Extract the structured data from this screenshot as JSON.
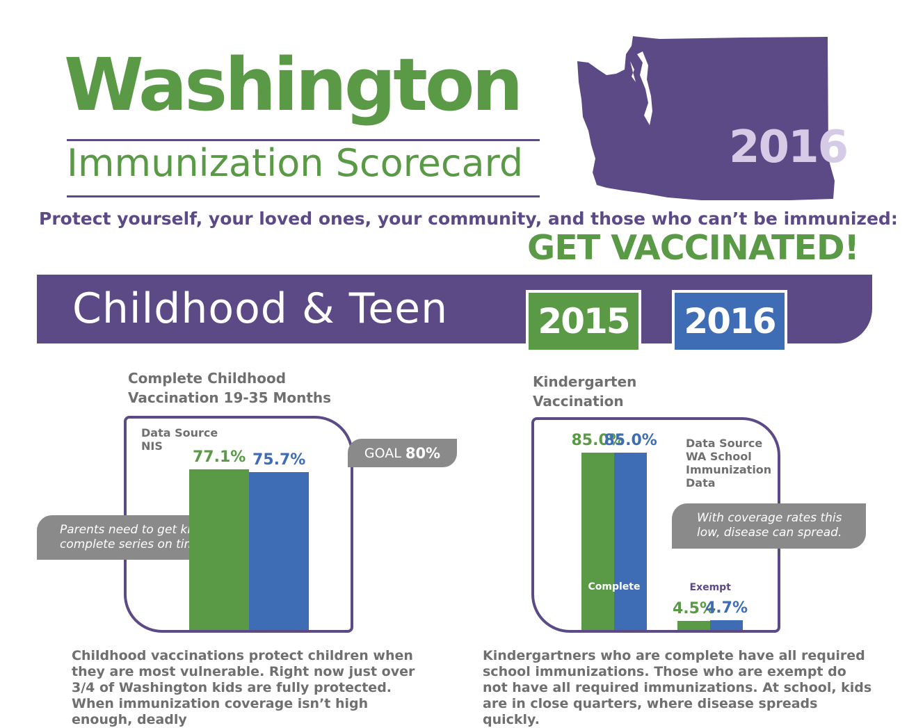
{
  "header": {
    "title": "Washington",
    "subtitle": "Immunization Scorecard",
    "map_year": "2016",
    "tagline": "Protect yourself, your loved ones, your community, and  those who can’t be immunized:",
    "cta": "GET VACCINATED!"
  },
  "section": {
    "title": "Childhood & Teen",
    "legend": [
      "2015",
      "2016"
    ]
  },
  "colors": {
    "green": "#5a9a46",
    "blue": "#3f6db5",
    "purple": "#5c4a87",
    "gray": "#8a8a8a"
  },
  "chart_data": [
    {
      "type": "bar",
      "title": "Complete Childhood Vaccination 19-35 Months",
      "title_lines": [
        "Complete Childhood",
        "Vaccination 19-35 Months"
      ],
      "source_lines": [
        "Data Source",
        "NIS"
      ],
      "goal_label": "GOAL",
      "goal_value": "80%",
      "categories": [
        ""
      ],
      "series": [
        {
          "name": "2015",
          "values": [
            77.1
          ],
          "labels": [
            "77.1%"
          ]
        },
        {
          "name": "2016",
          "values": [
            75.7
          ],
          "labels": [
            "75.7%"
          ]
        }
      ],
      "callout": [
        "Parents need to get kids the",
        "complete series on time."
      ],
      "body": "Childhood vaccinations protect children when they are most vulnerable. Right now just over 3/4 of Washington kids are fully protected. When immunization coverage isn’t high enough, deadly"
    },
    {
      "type": "bar",
      "title": "Kindergarten Vaccination",
      "title_lines": [
        "Kindergarten",
        "Vaccination"
      ],
      "source_lines": [
        "Data Source",
        "WA School",
        "Immunization",
        "Data"
      ],
      "categories": [
        "Complete",
        "Exempt"
      ],
      "series": [
        {
          "name": "2015",
          "values": [
            85.0,
            4.5
          ],
          "labels": [
            "85.0%",
            "4.5%"
          ]
        },
        {
          "name": "2016",
          "values": [
            85.0,
            4.7
          ],
          "labels": [
            "85.0%",
            "4.7%"
          ]
        }
      ],
      "callout": [
        "With coverage rates this",
        "low, disease can spread."
      ],
      "body": "Kindergartners who are complete have all required school immunizations. Those who are exempt do not have all required immunizations. At school, kids are in close quarters, where disease spreads quickly."
    }
  ]
}
